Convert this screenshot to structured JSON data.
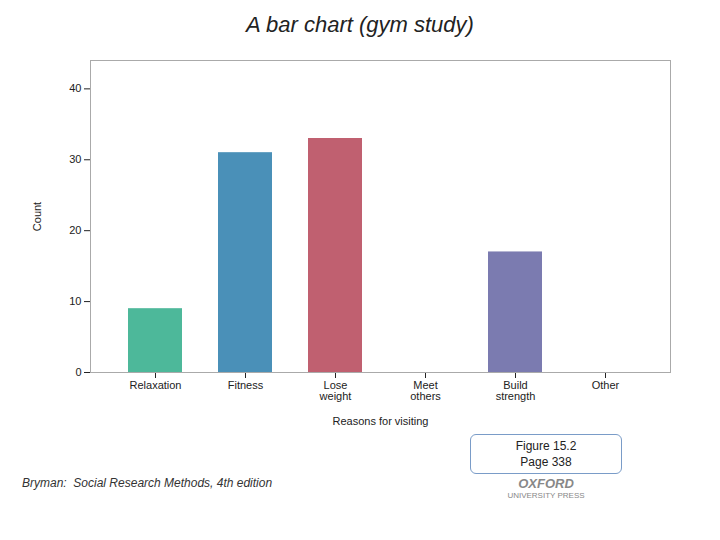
{
  "chart_data": {
    "type": "bar",
    "title": "A bar chart (gym study)",
    "categories": [
      "Relaxation",
      "Fitness",
      "Lose\nweight",
      "Meet\nothers",
      "Build\nstrength",
      "Other"
    ],
    "values": [
      9,
      31,
      33,
      0,
      17,
      0
    ],
    "colors": [
      "#4db89a",
      "#4a90b8",
      "#c06070",
      "#c06070",
      "#7b7bb0",
      "#7b7bb0"
    ],
    "xlabel": "Reasons for visiting",
    "ylabel": "Count",
    "ylim": [
      0,
      44
    ],
    "yticks": [
      0,
      10,
      20,
      30,
      40
    ],
    "grid": false,
    "annotations": [
      "Bryman:  Social Research Methods, 4th edition",
      "Figure 15.2",
      "Page 338",
      "OXFORD",
      "UNIVERSITY PRESS"
    ]
  }
}
